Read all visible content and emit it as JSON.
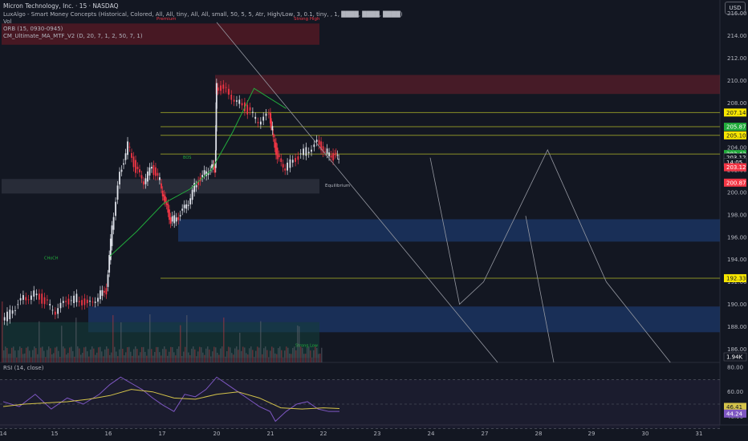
{
  "header": {
    "title": "Micron Technology, Inc. · 15 · NASDAQ",
    "indicators": [
      "LuxAlgo - Smart Money Concepts (Historical, Colored, All, All, tiny, All, All, small, 50, 5, 5, Atr, High/Low, 3, 0.1, tiny, , 1, ████, ████, ████)",
      "Vol",
      "ORB (15, 0930-0945)",
      "CM_Ultimate_MA_MTF_V2 (D, 20, 7, 1, 2, 50, 7, 1)"
    ],
    "currency": "USD"
  },
  "rsi_label": "RSI (14, close)",
  "colors": {
    "background": "#131722",
    "up_candle": "#e0e3eb",
    "down_candle": "#f23645",
    "supply_zone": "#7a1f2b",
    "demand_zone": "#1c3b6e",
    "level_line": "#9ea528",
    "ma_line": "#22ab3c",
    "rsi_line": "#7e57c2",
    "rsi_ma": "#d4c34a"
  },
  "chart_data": [
    {
      "type": "candlestick",
      "x_ticks": [
        "14",
        "15",
        "16",
        "17",
        "20",
        "21",
        "22",
        "23",
        "24",
        "27",
        "28",
        "29",
        "30",
        "31"
      ],
      "y_ticks": [
        186,
        188,
        190,
        192,
        194,
        196,
        198,
        200,
        202,
        204,
        206,
        208,
        210,
        212,
        214,
        216
      ],
      "ylim": [
        184.8,
        217.2
      ],
      "price_badges": [
        {
          "value": "207.14",
          "color": "#f7e600"
        },
        {
          "value": "205.87",
          "color": "#22ab3c"
        },
        {
          "value": "205.10",
          "color": "#f7e600"
        },
        {
          "value": "203.43",
          "color": "#22ab3c"
        },
        {
          "value": "203.12",
          "color": "#ffffff"
        },
        {
          "value": "14:05",
          "color": "#ffffff"
        },
        {
          "value": "203.12",
          "color": "#f23645"
        },
        {
          "value": "200.87",
          "color": "#f23645"
        },
        {
          "value": "192.33",
          "color": "#f7e600"
        },
        {
          "value": "1.94K",
          "color": "#ffffff"
        }
      ],
      "labels": {
        "premium": "Premium",
        "strong_high": "Strong High",
        "equilibrium": "Equilibrium",
        "weak_low": "Strong Low",
        "choch": "CHoCH",
        "bos": "BOS"
      },
      "levels": [
        207.14,
        205.87,
        205.1,
        203.43,
        192.33
      ],
      "zones": [
        {
          "kind": "premium",
          "from": 213.2,
          "to": 215.1
        },
        {
          "kind": "supply",
          "from": 208.8,
          "to": 210.5
        },
        {
          "kind": "equilibrium",
          "from": 199.9,
          "to": 201.2
        },
        {
          "kind": "demand",
          "from": 195.6,
          "to": 197.6
        },
        {
          "kind": "demand",
          "from": 187.5,
          "to": 189.8
        },
        {
          "kind": "discount",
          "from": 185.2,
          "to": 188.4
        }
      ],
      "projection": [
        [
          22.0,
          203.1
        ],
        [
          22.55,
          190.0
        ],
        [
          23.0,
          192.0
        ],
        [
          24.2,
          203.8
        ],
        [
          25.3,
          192.0
        ],
        [
          26.5,
          184.8
        ]
      ],
      "price_path": [
        [
          14.0,
          188.5
        ],
        [
          14.2,
          189.5
        ],
        [
          14.4,
          190.5
        ],
        [
          14.6,
          191.0
        ],
        [
          14.8,
          190.2
        ],
        [
          15.0,
          189.4
        ],
        [
          15.2,
          190.2
        ],
        [
          15.4,
          190.6
        ],
        [
          15.6,
          189.9
        ],
        [
          15.8,
          190.8
        ],
        [
          15.95,
          191.2
        ],
        [
          16.05,
          197.0
        ],
        [
          16.2,
          201.5
        ],
        [
          16.35,
          204.4
        ],
        [
          16.5,
          202.0
        ],
        [
          16.65,
          201.0
        ],
        [
          16.8,
          202.2
        ],
        [
          16.95,
          201.0
        ],
        [
          17.05,
          199.0
        ],
        [
          17.15,
          197.5
        ],
        [
          17.3,
          197.8
        ],
        [
          17.45,
          198.8
        ],
        [
          17.6,
          200.5
        ],
        [
          17.75,
          201.5
        ],
        [
          17.9,
          202.3
        ],
        [
          17.98,
          202.0
        ],
        [
          18.0,
          209.6
        ],
        [
          18.2,
          209.0
        ],
        [
          18.4,
          208.2
        ],
        [
          18.6,
          207.3
        ],
        [
          18.8,
          206.4
        ],
        [
          19.0,
          206.8
        ],
        [
          19.05,
          205.6
        ],
        [
          19.15,
          203.0
        ],
        [
          19.3,
          202.3
        ],
        [
          19.5,
          202.9
        ],
        [
          19.7,
          203.8
        ],
        [
          19.9,
          204.4
        ],
        [
          20.05,
          203.7
        ],
        [
          20.2,
          203.2
        ],
        [
          20.3,
          203.12
        ]
      ]
    },
    {
      "type": "line",
      "title": "RSI (14, close)",
      "y_ticks": [
        40.0,
        60.0,
        80.0
      ],
      "ylim": [
        33,
        84
      ],
      "badges": [
        {
          "value": "46.41",
          "color": "#d4c34a"
        },
        {
          "value": "44.24",
          "color": "#7e57c2"
        }
      ],
      "rsi": [
        [
          14.0,
          52
        ],
        [
          14.3,
          48
        ],
        [
          14.6,
          58
        ],
        [
          14.9,
          46
        ],
        [
          15.2,
          55
        ],
        [
          15.5,
          50
        ],
        [
          15.8,
          58
        ],
        [
          16.0,
          66
        ],
        [
          16.2,
          72
        ],
        [
          16.4,
          67
        ],
        [
          16.6,
          62
        ],
        [
          16.8,
          55
        ],
        [
          17.0,
          49
        ],
        [
          17.2,
          44
        ],
        [
          17.4,
          58
        ],
        [
          17.6,
          56
        ],
        [
          17.8,
          62
        ],
        [
          18.0,
          72
        ],
        [
          18.2,
          66
        ],
        [
          18.4,
          60
        ],
        [
          18.6,
          54
        ],
        [
          18.8,
          48
        ],
        [
          19.0,
          44
        ],
        [
          19.1,
          36
        ],
        [
          19.3,
          44
        ],
        [
          19.5,
          50
        ],
        [
          19.7,
          52
        ],
        [
          19.9,
          46
        ],
        [
          20.1,
          44
        ],
        [
          20.3,
          44
        ]
      ],
      "rsi_ma": [
        [
          14.0,
          48
        ],
        [
          14.4,
          50
        ],
        [
          14.8,
          51
        ],
        [
          15.2,
          52
        ],
        [
          15.6,
          54
        ],
        [
          16.0,
          57
        ],
        [
          16.4,
          62
        ],
        [
          16.8,
          60
        ],
        [
          17.2,
          55
        ],
        [
          17.6,
          54
        ],
        [
          18.0,
          58
        ],
        [
          18.4,
          60
        ],
        [
          18.8,
          55
        ],
        [
          19.2,
          47
        ],
        [
          19.6,
          46
        ],
        [
          20.0,
          47
        ],
        [
          20.3,
          46.4
        ]
      ]
    }
  ]
}
